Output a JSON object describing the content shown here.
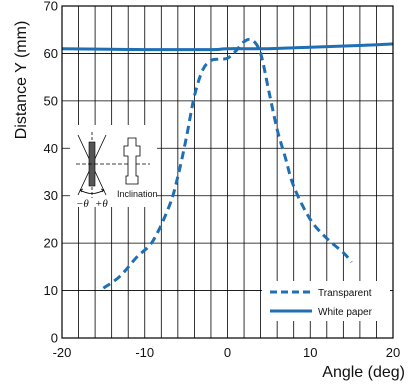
{
  "chart_data": {
    "type": "line",
    "xlabel": "Angle (deg)",
    "ylabel": "Distance Y (mm)",
    "xlim": [
      -20,
      20
    ],
    "ylim": [
      0,
      70
    ],
    "x_ticks": [
      "-20",
      "-10",
      "0",
      "10",
      "20"
    ],
    "y_ticks": [
      "0",
      "10",
      "20",
      "30",
      "40",
      "50",
      "60",
      "70"
    ],
    "grid": true,
    "x_minor_step": 2,
    "y_major_step": 10,
    "legend_position": "bottom-right",
    "series": [
      {
        "name": "Transparent",
        "style": "dashed",
        "color": "#1f6fb5",
        "points": [
          [
            -15,
            10.5
          ],
          [
            -13,
            13
          ],
          [
            -11,
            17
          ],
          [
            -9,
            20.5
          ],
          [
            -7,
            28
          ],
          [
            -6,
            34
          ],
          [
            -5,
            42
          ],
          [
            -4,
            51
          ],
          [
            -3,
            56.5
          ],
          [
            -2,
            58.5
          ],
          [
            -1,
            58.8
          ],
          [
            0,
            59
          ],
          [
            1,
            60.5
          ],
          [
            2,
            62.5
          ],
          [
            3,
            62.8
          ],
          [
            4,
            60
          ],
          [
            5,
            52
          ],
          [
            6,
            44
          ],
          [
            7,
            38
          ],
          [
            8,
            32
          ],
          [
            10,
            25
          ],
          [
            12,
            21
          ],
          [
            14,
            18
          ],
          [
            15,
            16
          ]
        ]
      },
      {
        "name": "White paper",
        "style": "solid",
        "color": "#1f6fb5",
        "points": [
          [
            -20,
            61
          ],
          [
            -10,
            60.8
          ],
          [
            -2,
            60.8
          ],
          [
            0,
            61
          ],
          [
            5,
            61
          ],
          [
            10,
            61.3
          ],
          [
            15,
            61.6
          ],
          [
            20,
            62
          ]
        ]
      }
    ],
    "inset": {
      "angle_labels": [
        "−θ",
        "+θ"
      ],
      "caption": "Inclination"
    }
  }
}
